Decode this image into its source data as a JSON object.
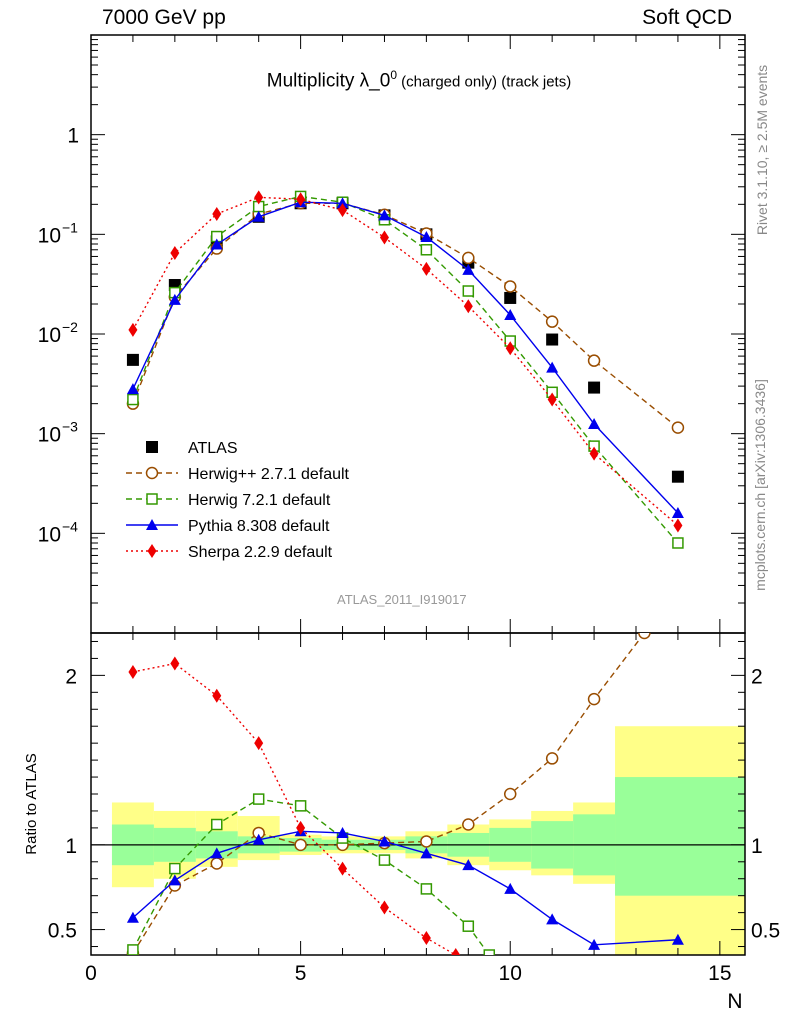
{
  "header": {
    "left": "7000 GeV pp",
    "right": "Soft QCD"
  },
  "side_right_top": "Rivet 3.1.10, ≥ 2.5M events",
  "side_right_bottom": "mcplots.cern.ch [arXiv:1306.3436]",
  "plot_title_main": "Multiplicity λ_0",
  "plot_title_sup": "0",
  "plot_title_tail": " (charged only) (track jets)",
  "analysis_id": "ATLAS_2011_I919017",
  "chart_data": [
    {
      "type": "scatter",
      "panel": "main",
      "yscale": "log",
      "xlim": [
        0,
        15.6
      ],
      "ylim": [
        1e-05,
        10
      ],
      "y_tick_labels": [
        "10^-4",
        "10^-3",
        "10^-2",
        "10^-1",
        "1"
      ],
      "legend_position": "lower-left",
      "series": [
        {
          "name": "ATLAS",
          "color": "#000000",
          "marker": "square-filled",
          "line": "none",
          "x": [
            1,
            2,
            3,
            4,
            5,
            6,
            7,
            8,
            9,
            10,
            11,
            12,
            14
          ],
          "y": [
            0.0055,
            0.031,
            0.085,
            0.15,
            0.205,
            0.205,
            0.155,
            0.1,
            0.052,
            0.023,
            0.0088,
            0.0029,
            0.00037
          ]
        },
        {
          "name": "Herwig++ 2.7.1 default",
          "color": "#994d00",
          "marker": "circle-open",
          "line": "dashed",
          "x": [
            1,
            2,
            3,
            4,
            5,
            6,
            7,
            8,
            9,
            10,
            11,
            12,
            14
          ],
          "y": [
            0.002,
            0.0235,
            0.072,
            0.16,
            0.205,
            0.205,
            0.157,
            0.102,
            0.058,
            0.03,
            0.0133,
            0.0054,
            0.00115
          ]
        },
        {
          "name": "Herwig 7.2.1 default",
          "color": "#339900",
          "marker": "square-open",
          "line": "dashed",
          "x": [
            1,
            2,
            3,
            4,
            5,
            6,
            7,
            8,
            9,
            10,
            11,
            12,
            14
          ],
          "y": [
            0.0022,
            0.026,
            0.095,
            0.19,
            0.24,
            0.21,
            0.14,
            0.07,
            0.027,
            0.0085,
            0.0026,
            0.00075,
            8e-05
          ]
        },
        {
          "name": "Pythia 8.308 default",
          "color": "#0000ee",
          "marker": "triangle-filled",
          "line": "solid",
          "x": [
            1,
            2,
            3,
            4,
            5,
            6,
            7,
            8,
            9,
            10,
            11,
            12,
            14
          ],
          "y": [
            0.0028,
            0.022,
            0.079,
            0.15,
            0.21,
            0.205,
            0.155,
            0.094,
            0.044,
            0.0155,
            0.0046,
            0.00125,
            0.00016
          ]
        },
        {
          "name": "Sherpa 2.2.9 default",
          "color": "#ee0000",
          "marker": "diamond-filled",
          "line": "dotted",
          "x": [
            1,
            2,
            3,
            4,
            5,
            6,
            7,
            8,
            9,
            10,
            11,
            12,
            14
          ],
          "y": [
            0.011,
            0.065,
            0.16,
            0.235,
            0.225,
            0.175,
            0.093,
            0.045,
            0.019,
            0.0072,
            0.0022,
            0.00063,
            0.00012
          ]
        }
      ]
    },
    {
      "type": "scatter",
      "panel": "ratio",
      "xlabel": "N",
      "ylabel": "Ratio to ATLAS",
      "xlim": [
        0,
        15.6
      ],
      "ylim": [
        0.35,
        2.25
      ],
      "x_ticks": [
        0,
        5,
        10,
        15
      ],
      "y_ticks": [
        0.5,
        1,
        2
      ],
      "reference_line": 1,
      "uncertainty_bands": {
        "bin_edges": [
          0.5,
          1.5,
          2.5,
          3.5,
          4.5,
          5.5,
          6.5,
          7.5,
          8.5,
          9.5,
          10.5,
          11.5,
          12.5,
          15.6
        ],
        "stat": [
          [
            0.88,
            1.12
          ],
          [
            0.9,
            1.1
          ],
          [
            0.92,
            1.08
          ],
          [
            0.95,
            1.05
          ],
          [
            0.96,
            1.04
          ],
          [
            0.97,
            1.03
          ],
          [
            0.97,
            1.03
          ],
          [
            0.95,
            1.05
          ],
          [
            0.93,
            1.07
          ],
          [
            0.9,
            1.1
          ],
          [
            0.86,
            1.14
          ],
          [
            0.82,
            1.18
          ],
          [
            0.7,
            1.4
          ]
        ],
        "stat_syst": [
          [
            0.75,
            1.25
          ],
          [
            0.8,
            1.2
          ],
          [
            0.87,
            1.2
          ],
          [
            0.91,
            1.17
          ],
          [
            0.94,
            1.06
          ],
          [
            0.95,
            1.05
          ],
          [
            0.95,
            1.05
          ],
          [
            0.92,
            1.08
          ],
          [
            0.88,
            1.12
          ],
          [
            0.85,
            1.15
          ],
          [
            0.82,
            1.2
          ],
          [
            0.77,
            1.25
          ],
          [
            0.35,
            1.7
          ]
        ]
      },
      "series": [
        {
          "name": "Herwig++ 2.7.1 default",
          "color": "#994d00",
          "marker": "circle-open",
          "line": "dashed",
          "x": [
            1,
            2,
            3,
            4,
            5,
            6,
            7,
            8,
            9,
            10,
            11,
            12,
            13.2
          ],
          "y": [
            0.36,
            0.76,
            0.89,
            1.07,
            1.0,
            1.0,
            1.01,
            1.02,
            1.12,
            1.3,
            1.51,
            1.86,
            2.25
          ]
        },
        {
          "name": "Herwig 7.2.1 default",
          "color": "#339900",
          "marker": "square-open",
          "line": "dashed",
          "x": [
            1,
            2,
            3,
            4,
            5,
            6,
            7,
            8,
            9,
            9.5
          ],
          "y": [
            0.38,
            0.86,
            1.12,
            1.27,
            1.23,
            1.04,
            0.91,
            0.74,
            0.52,
            0.35
          ]
        },
        {
          "name": "Pythia 8.308 default",
          "color": "#0000ee",
          "marker": "triangle-filled",
          "line": "solid",
          "x": [
            1,
            2,
            3,
            4,
            5,
            6,
            7,
            8,
            9,
            10,
            11,
            12,
            14
          ],
          "y": [
            0.57,
            0.79,
            0.95,
            1.03,
            1.08,
            1.07,
            1.02,
            0.95,
            0.88,
            0.74,
            0.56,
            0.41,
            0.44
          ]
        },
        {
          "name": "Sherpa 2.2.9 default",
          "color": "#ee0000",
          "marker": "diamond-filled",
          "line": "dotted",
          "x": [
            1,
            2,
            3,
            4,
            5,
            6,
            7,
            8,
            8.7
          ],
          "y": [
            2.02,
            2.07,
            1.88,
            1.6,
            1.1,
            0.86,
            0.63,
            0.45,
            0.35
          ]
        }
      ]
    }
  ]
}
